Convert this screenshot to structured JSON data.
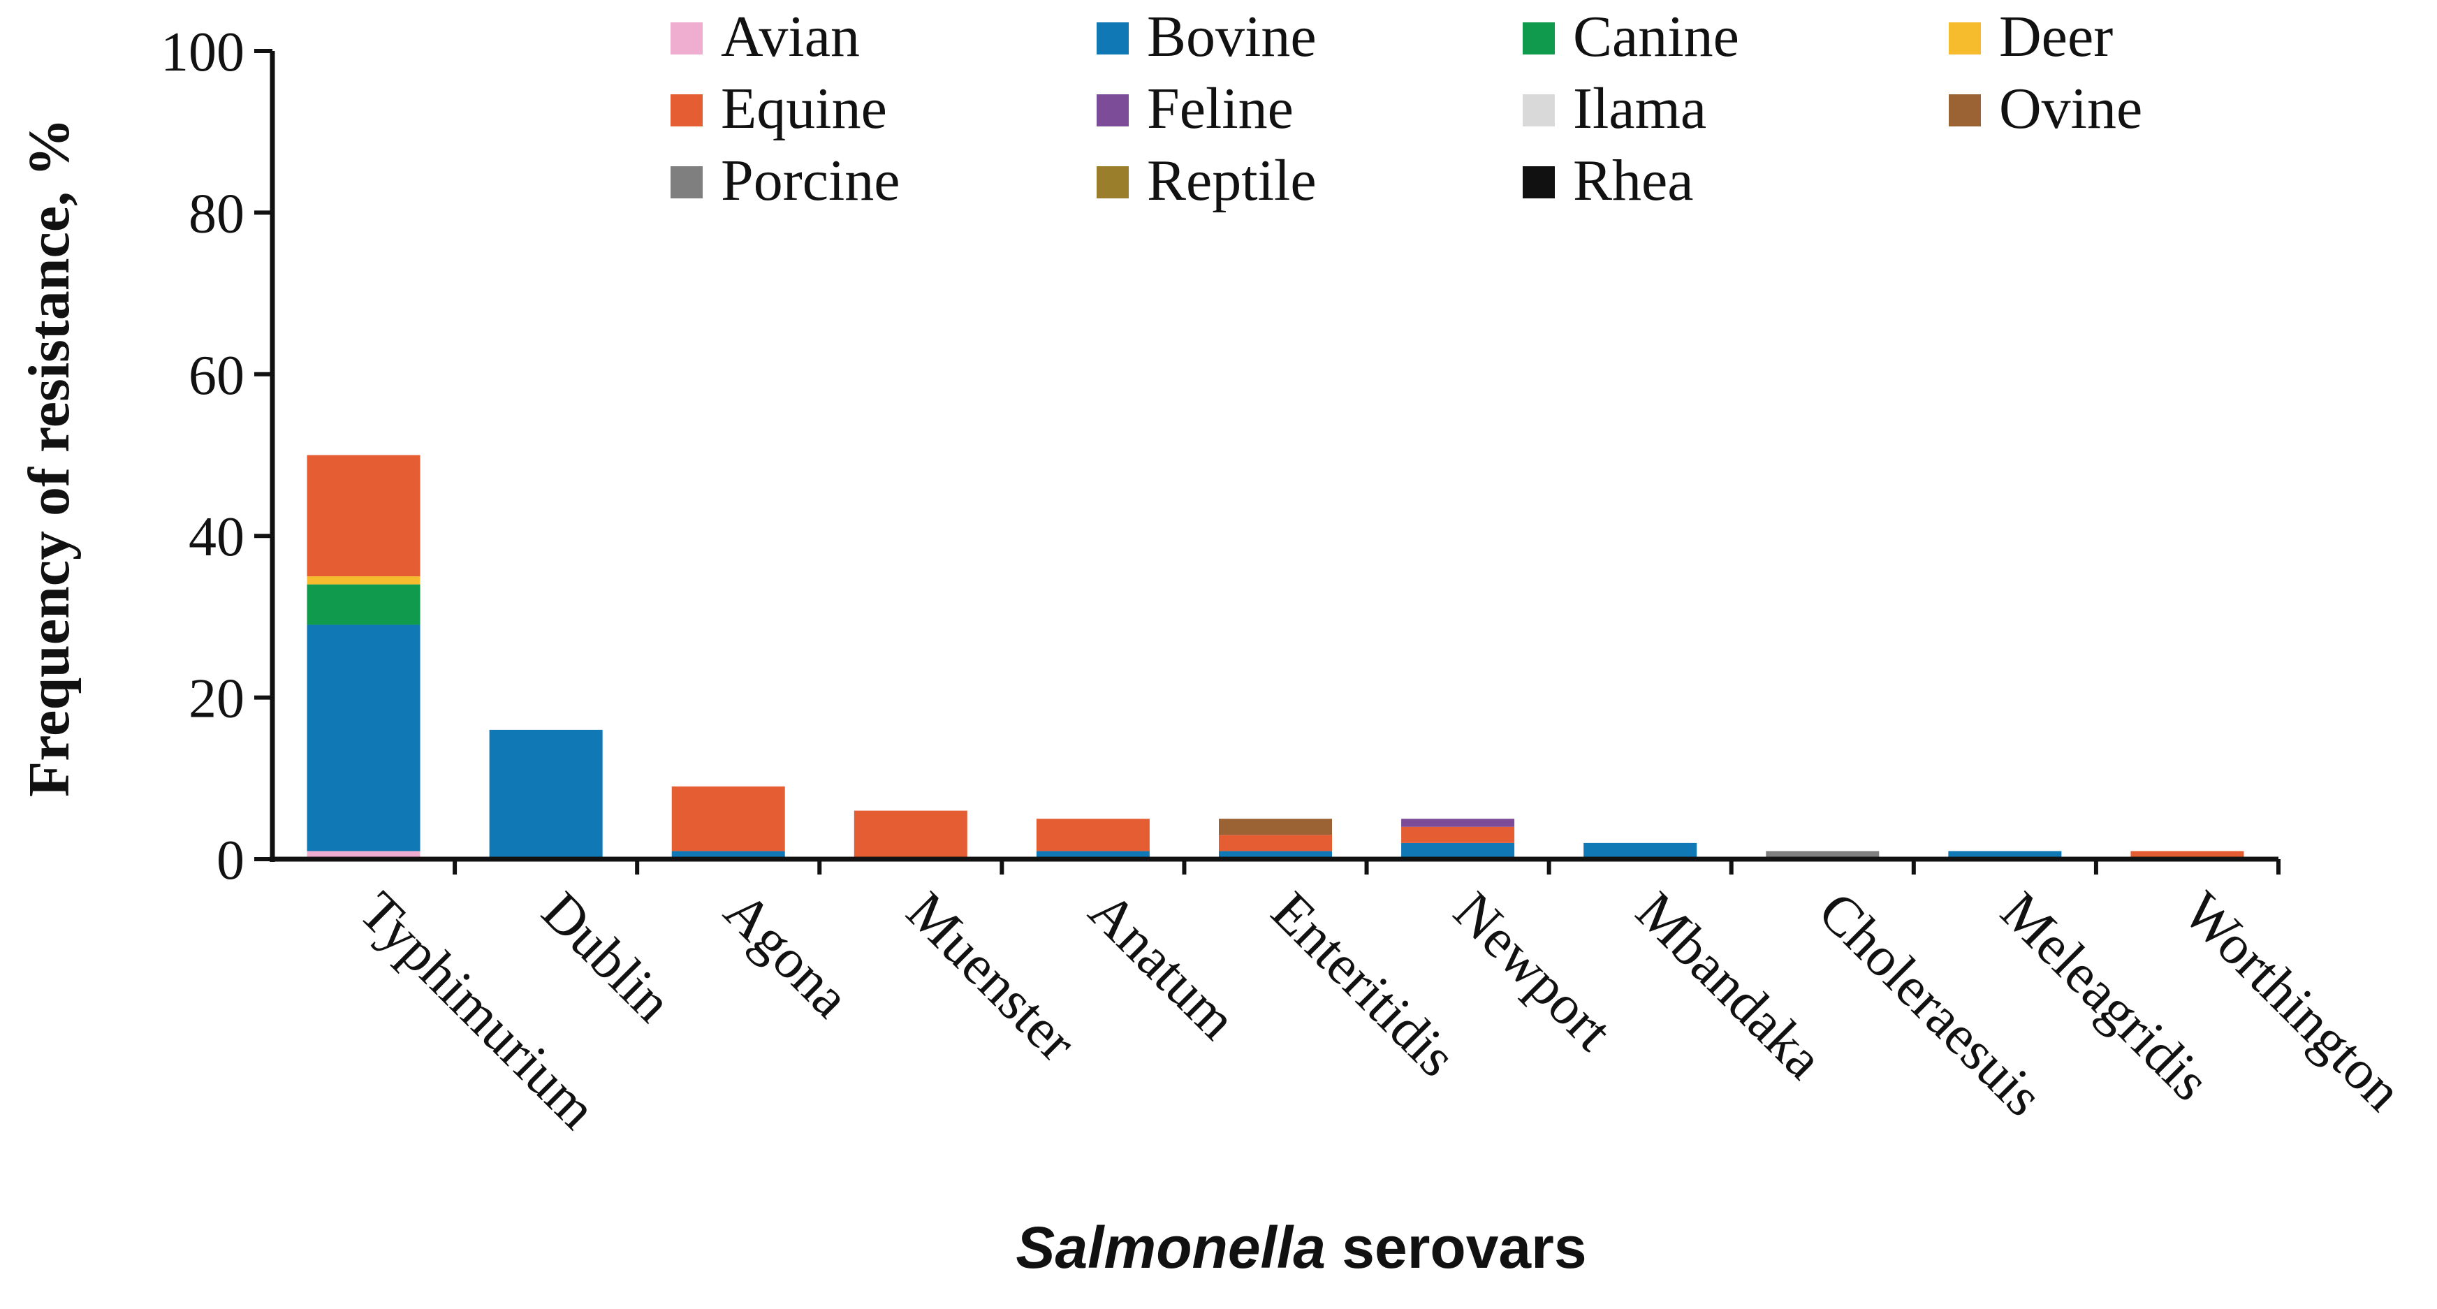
{
  "chart_data": {
    "type": "bar",
    "stacked": true,
    "xlabel_italic": "Salmonella",
    "xlabel_rest": " serovars",
    "ylabel": "Frequency of resistance, %",
    "ylim": [
      0,
      100
    ],
    "yticks": [
      0,
      20,
      40,
      60,
      80,
      100
    ],
    "legend_position": "top",
    "categories": [
      "Typhimurium",
      "Dublin",
      "Agona",
      "Muenster",
      "Anatum",
      "Enteritidis",
      "Newport",
      "Mbandaka",
      "Choleraesuis",
      "Meleagridis",
      "Worthington"
    ],
    "series": [
      {
        "name": "Avian",
        "color": "#efaed0",
        "values": [
          1,
          0,
          0,
          0,
          0,
          0,
          0,
          0,
          0,
          0,
          0
        ]
      },
      {
        "name": "Bovine",
        "color": "#0f78b5",
        "values": [
          28,
          16,
          1,
          0,
          1,
          1,
          2,
          2,
          0,
          1,
          0
        ]
      },
      {
        "name": "Canine",
        "color": "#0f9a4e",
        "values": [
          5,
          0,
          0,
          0,
          0,
          0,
          0,
          0,
          0,
          0,
          0
        ]
      },
      {
        "name": "Deer",
        "color": "#f7bb2e",
        "values": [
          1,
          0,
          0,
          0,
          0,
          0,
          0,
          0,
          0,
          0,
          0
        ]
      },
      {
        "name": "Equine",
        "color": "#e45d33",
        "values": [
          15,
          0,
          8,
          6,
          4,
          2,
          2,
          0,
          0,
          0,
          1
        ]
      },
      {
        "name": "Feline",
        "color": "#7d4c99",
        "values": [
          0,
          0,
          0,
          0,
          0,
          0,
          1,
          0,
          0,
          0,
          0
        ]
      },
      {
        "name": "Ilama",
        "color": "#d9d9d9",
        "values": [
          0,
          0,
          0,
          0,
          0,
          0,
          0,
          0,
          0,
          0,
          0
        ]
      },
      {
        "name": "Ovine",
        "color": "#9b6234",
        "values": [
          0,
          0,
          0,
          0,
          0,
          2,
          0,
          0,
          0,
          0,
          0
        ]
      },
      {
        "name": "Porcine",
        "color": "#7f7f7f",
        "values": [
          0,
          0,
          0,
          0,
          0,
          0,
          0,
          0,
          1,
          0,
          0
        ]
      },
      {
        "name": "Reptile",
        "color": "#9b7e2c",
        "values": [
          0,
          0,
          0,
          0,
          0,
          0,
          0,
          0,
          0,
          0,
          0
        ]
      },
      {
        "name": "Rhea",
        "color": "#111111",
        "values": [
          0,
          0,
          0,
          0,
          0,
          0,
          0,
          0,
          0,
          0,
          0
        ]
      }
    ]
  }
}
